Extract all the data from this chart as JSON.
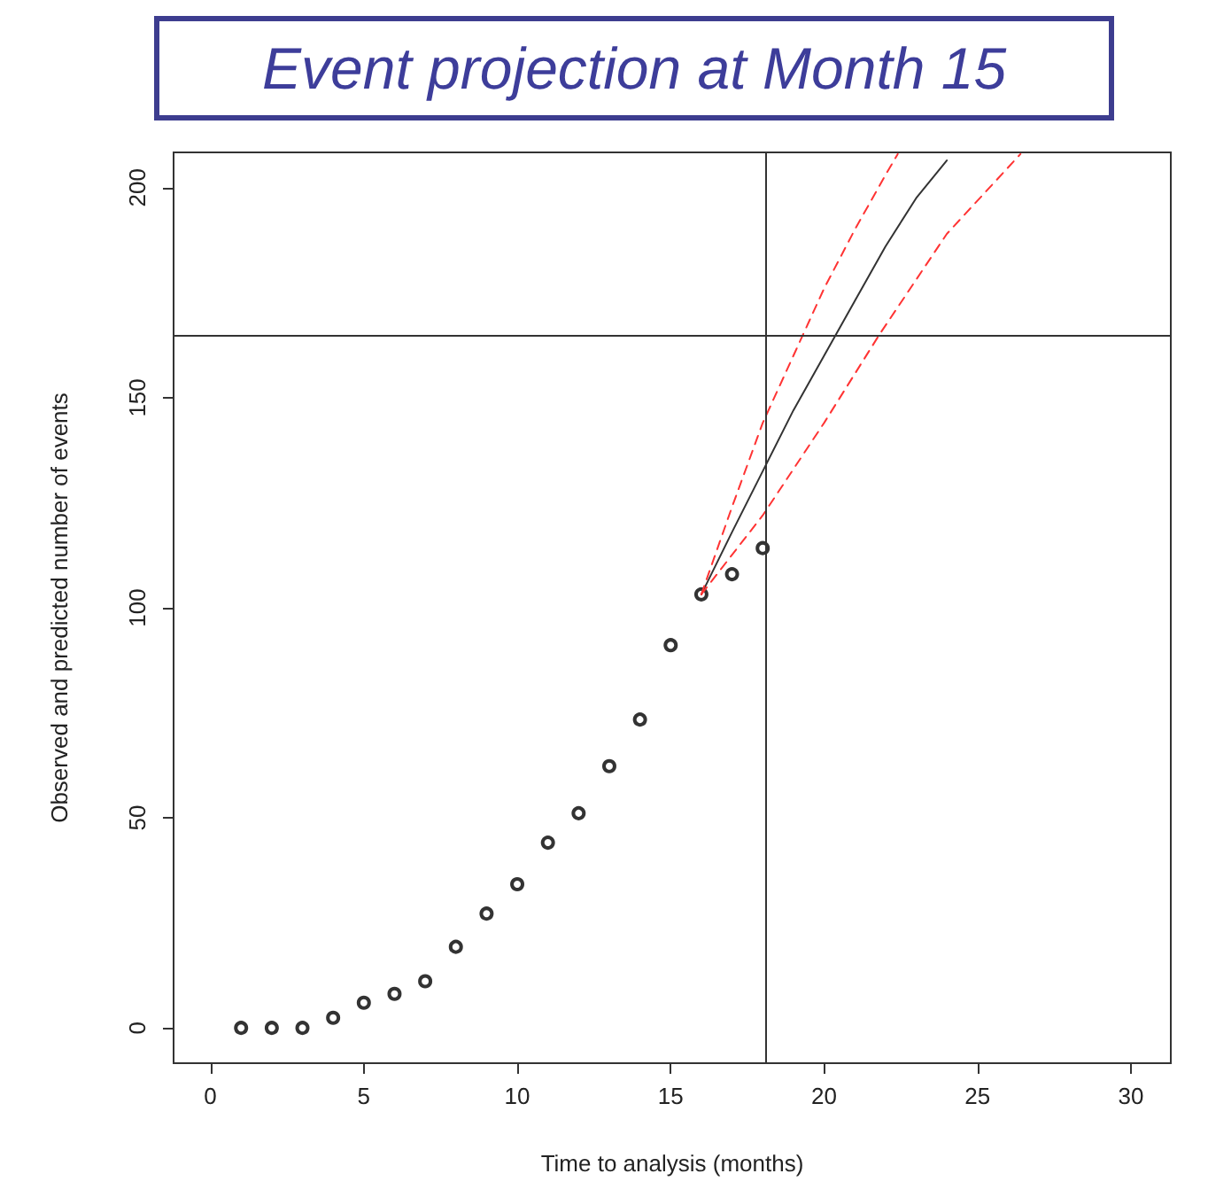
{
  "chart_data": {
    "type": "scatter",
    "title": "Event projection at Month 15",
    "xlabel": "Time to analysis (months)",
    "ylabel": "Observed and predicted number of events",
    "xlim": [
      -1.2,
      31.3
    ],
    "ylim": [
      -8.4,
      208.4
    ],
    "xticks": [
      0,
      5,
      10,
      15,
      20,
      25,
      30
    ],
    "yticks": [
      0,
      50,
      100,
      150,
      200
    ],
    "grid": false,
    "series": [
      {
        "color": "#000000",
        "marker": "circle",
        "x": [
          1,
          2,
          3,
          4,
          5,
          6,
          7,
          8,
          9,
          10,
          11,
          12,
          13,
          14,
          15,
          16,
          17,
          18
        ],
        "values": [
          0,
          0,
          0,
          2.4,
          6,
          8.1,
          11.1,
          19.3,
          27.2,
          34.2,
          44.1,
          51.1,
          62.3,
          73.4,
          91.1,
          103.2,
          108,
          114.2
        ]
      },
      {
        "type": "line",
        "color": "#333333",
        "line_style": "solid",
        "marker": "none",
        "x": [
          16,
          17,
          18,
          19,
          20,
          21,
          22,
          23,
          24
        ],
        "values": [
          103.2,
          118,
          132.5,
          147,
          160,
          173,
          186,
          197.5,
          206.5
        ]
      },
      {
        "type": "line",
        "color": "#ff3333",
        "line_style": "dashed",
        "marker": "none",
        "x": [
          16,
          17,
          18,
          19,
          20,
          21,
          22,
          22.4
        ],
        "values": [
          103.2,
          124,
          144,
          160,
          176,
          190,
          203,
          208
        ]
      },
      {
        "type": "line",
        "color": "#ff3333",
        "line_style": "dashed",
        "marker": "none",
        "x": [
          16,
          18,
          20,
          21.8,
          24,
          26.4
        ],
        "values": [
          103.2,
          122,
          144,
          165,
          189,
          208
        ]
      }
    ],
    "ref_lines": [
      {
        "axis": "x",
        "value": 18.1,
        "color": "#333333"
      },
      {
        "axis": "y",
        "value": 165,
        "color": "#333333"
      }
    ]
  }
}
